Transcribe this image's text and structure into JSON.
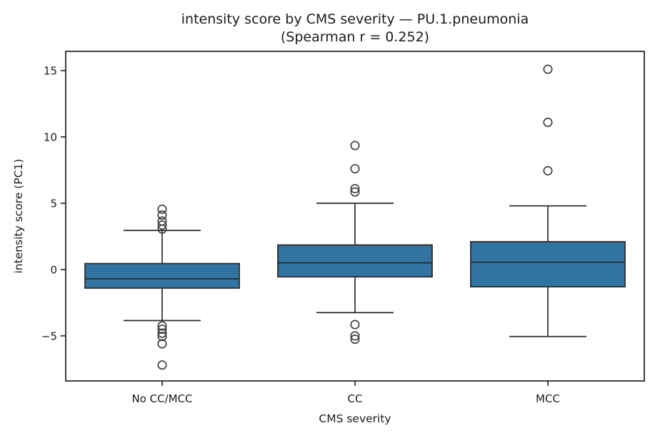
{
  "chart": {
    "title_line1": "intensity score by CMS severity — PU.1.pneumonia",
    "title_line2": "(Spearman r = 0.252)",
    "xlabel": "CMS severity",
    "ylabel": "intensity score (PC1)"
  },
  "chart_data": {
    "type": "box",
    "title": "intensity score by CMS severity — PU.1.pneumonia (Spearman r = 0.252)",
    "xlabel": "CMS severity",
    "ylabel": "intensity score (PC1)",
    "legend": "none",
    "grid": false,
    "categories": [
      "No CC/MCC",
      "CC",
      "MCC"
    ],
    "ylim": [
      -8.4,
      16.45
    ],
    "ytick_values": [
      -5,
      0,
      5,
      10,
      15
    ],
    "ytick_labels": [
      "−5",
      "0",
      "5",
      "10",
      "15"
    ],
    "series": [
      {
        "category": "No CC/MCC",
        "whisker_low": -3.85,
        "q1": -1.4,
        "median": -0.7,
        "q3": 0.45,
        "whisker_high": 2.95,
        "outliers": [
          4.55,
          4.1,
          3.65,
          3.35,
          3.05,
          -4.25,
          -4.5,
          -4.8,
          -5.05,
          -5.6,
          -7.2
        ]
      },
      {
        "category": "CC",
        "whisker_low": -3.25,
        "q1": -0.55,
        "median": 0.5,
        "q3": 1.85,
        "whisker_high": 5.0,
        "outliers": [
          9.35,
          7.6,
          6.1,
          5.85,
          -4.15,
          -5.0,
          -5.25
        ]
      },
      {
        "category": "MCC",
        "whisker_low": -5.05,
        "q1": -1.3,
        "median": 0.55,
        "q3": 2.1,
        "whisker_high": 4.8,
        "outliers": [
          15.1,
          11.1,
          7.45
        ]
      }
    ],
    "colors": {
      "box_fill": "#3274a1",
      "line": "#2b2b2b",
      "flier_edge": "#424242",
      "text": "#1a1a1a",
      "background": "#ffffff"
    }
  }
}
